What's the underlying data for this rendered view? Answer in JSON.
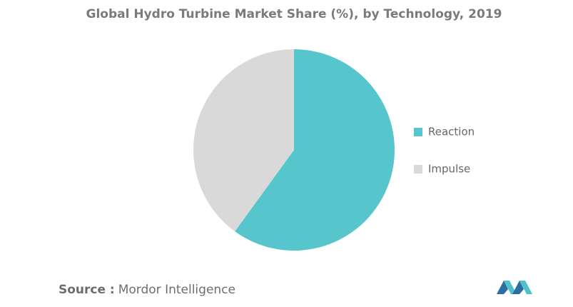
{
  "chart_data": {
    "type": "pie",
    "title": "Global Hydro Turbine Market Share (%), by Technology, 2019",
    "categories": [
      "Reaction",
      "Impulse"
    ],
    "values": [
      60,
      40
    ],
    "colors": [
      "#57c6cc",
      "#d9d9d9"
    ],
    "legend": "right",
    "source_label": "Source :",
    "source": "Mordor Intelligence"
  }
}
